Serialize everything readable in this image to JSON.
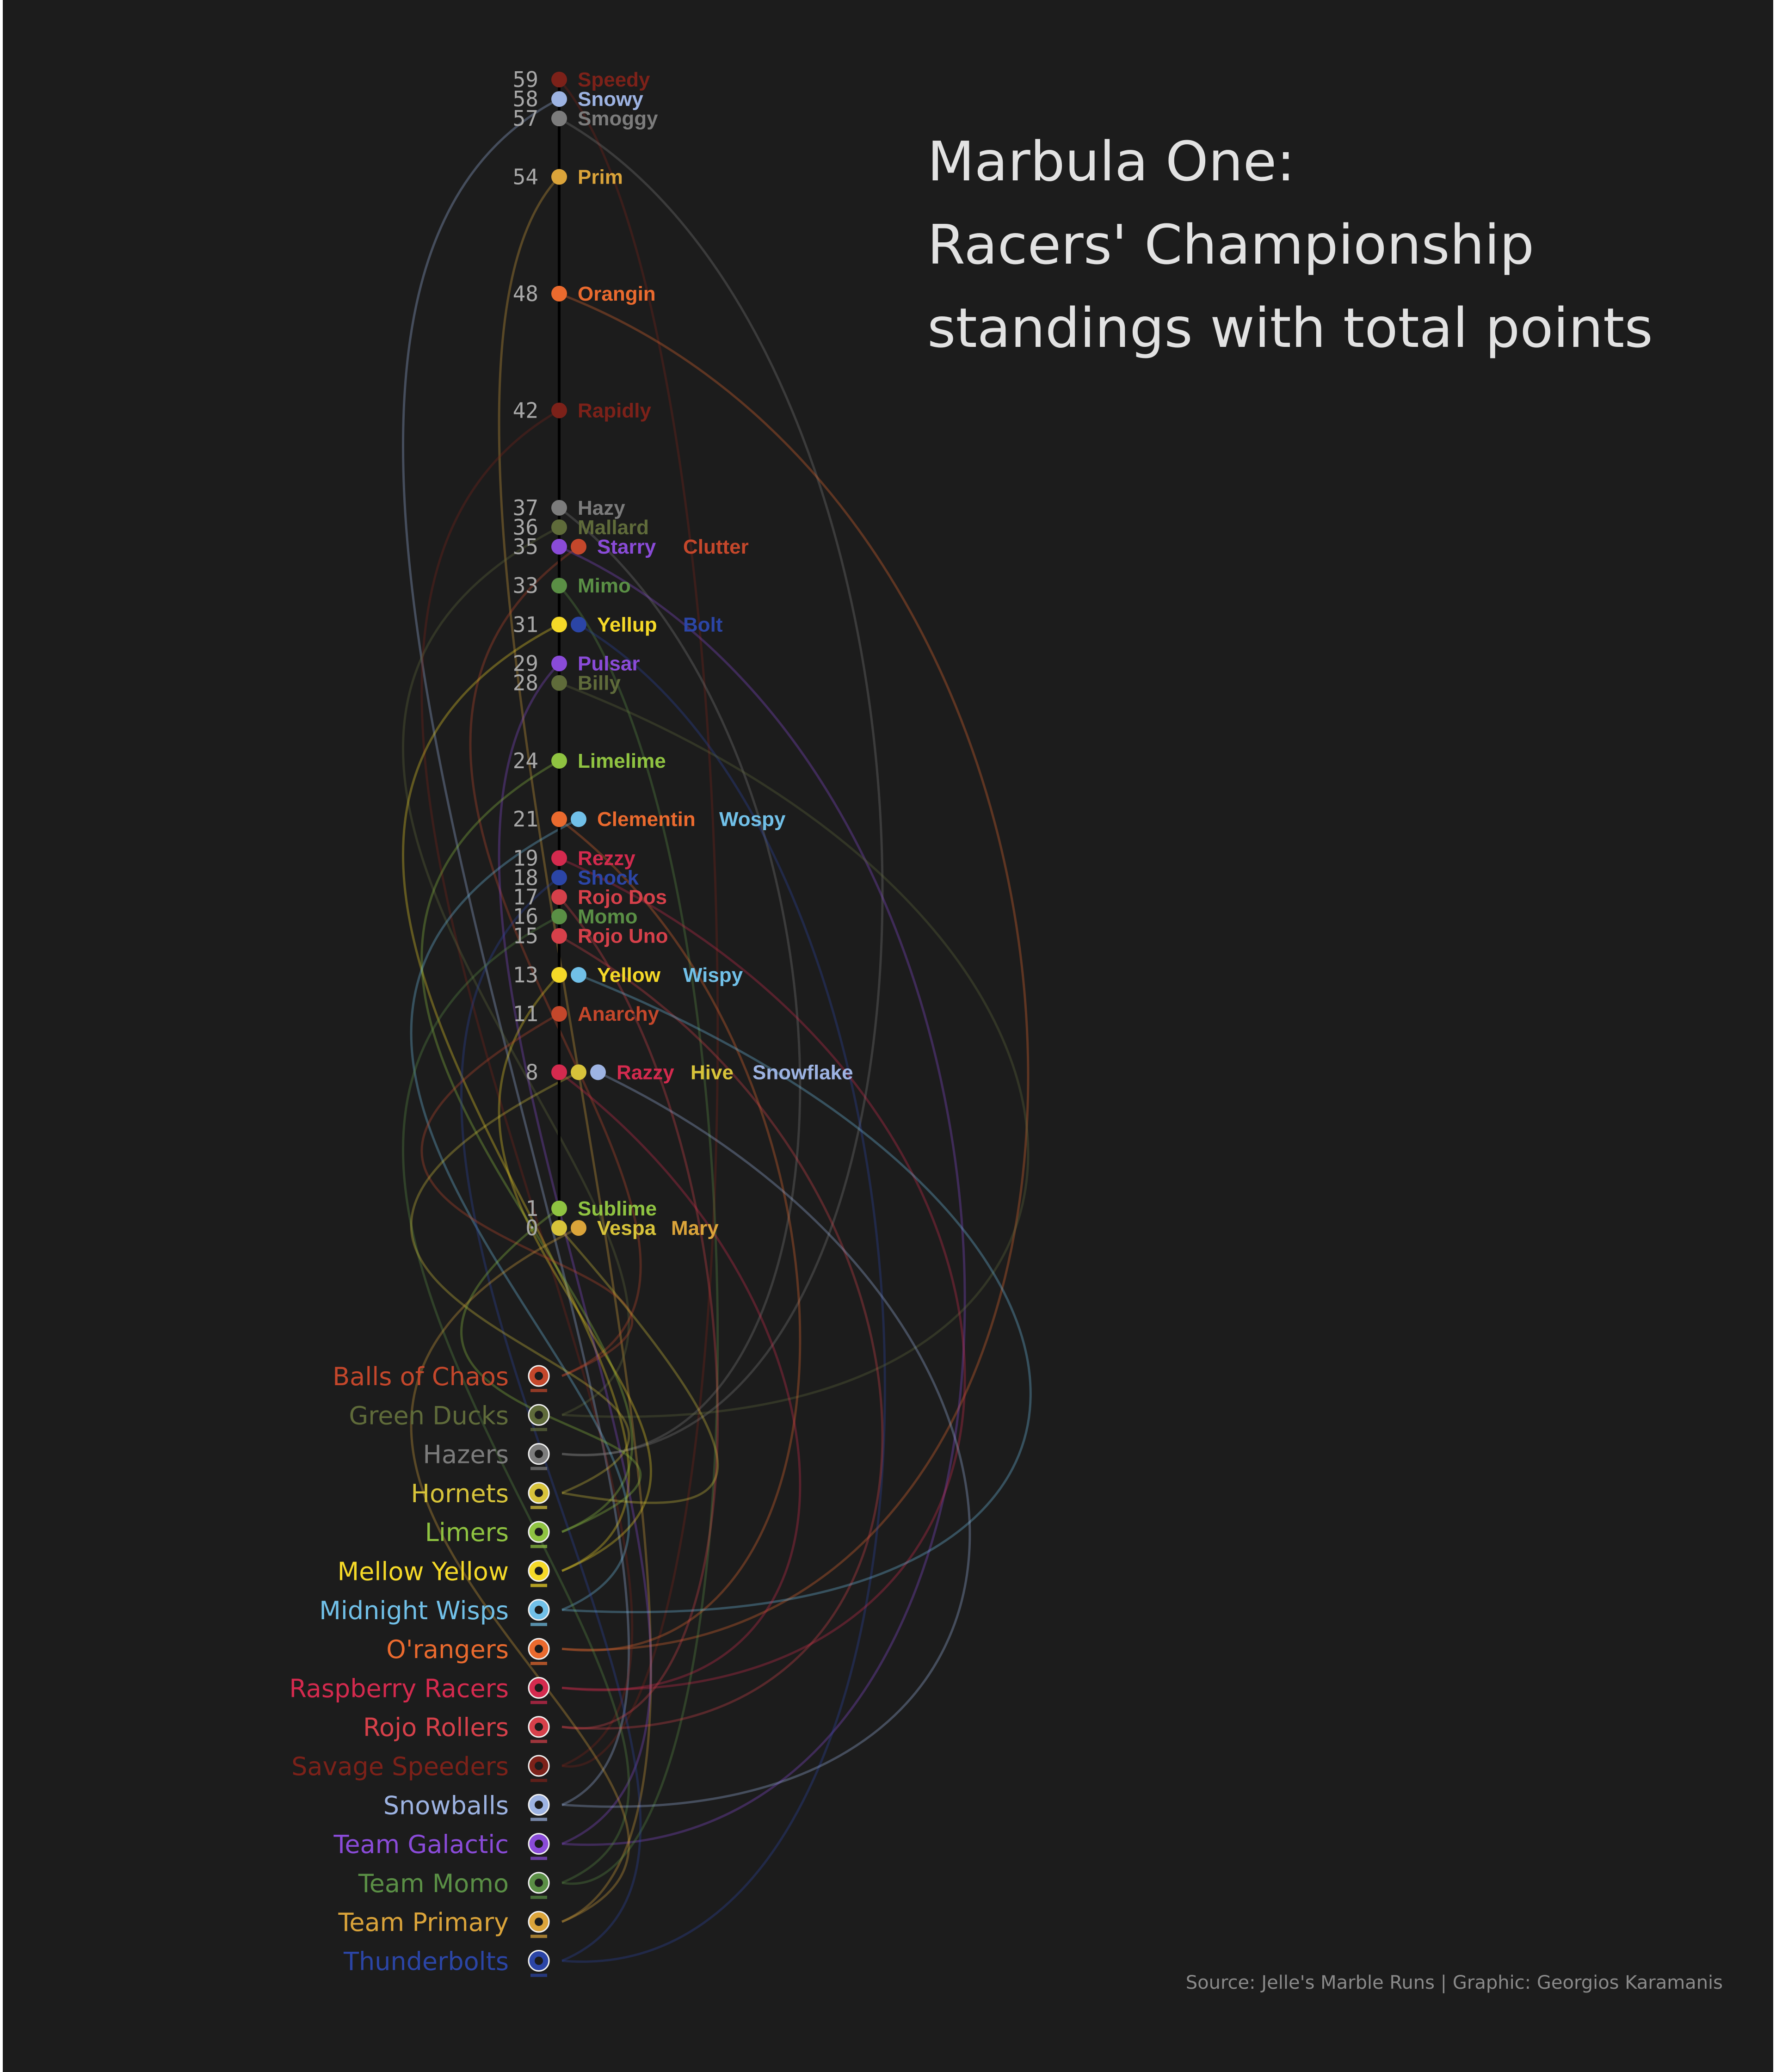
{
  "title_lines": [
    "Marbula One:",
    "Racers' Championship",
    "standings with total points"
  ],
  "caption": "Source: Jelle's Marble Runs | Graphic: Georgios Karamanis",
  "colors": {
    "background": "#1c1c1c",
    "frame": "#ffffff",
    "axis": "#000000"
  },
  "chart_data": {
    "type": "line",
    "title": "Marbula One: Racers' Championship standings with total points",
    "ylabel": "",
    "teams": [
      {
        "name": "Balls of Chaos",
        "color": "#c4472b",
        "icon": "chaos-logo-icon"
      },
      {
        "name": "Green Ducks",
        "color": "#5f6b3a",
        "icon": "duck-logo-icon"
      },
      {
        "name": "Hazers",
        "color": "#7c7c7c",
        "icon": "hazers-logo-icon"
      },
      {
        "name": "Hornets",
        "color": "#d7c33a",
        "icon": "hornet-logo-icon"
      },
      {
        "name": "Limers",
        "color": "#8fc341",
        "icon": "lime-logo-icon"
      },
      {
        "name": "Mellow Yellow",
        "color": "#f5d928",
        "icon": "yellow-logo-icon"
      },
      {
        "name": "Midnight Wisps",
        "color": "#71c0e8",
        "icon": "wisp-logo-icon"
      },
      {
        "name": "O'rangers",
        "color": "#ea6a2e",
        "icon": "orange-logo-icon"
      },
      {
        "name": "Raspberry Racers",
        "color": "#d42a4e",
        "icon": "raspberry-logo-icon"
      },
      {
        "name": "Rojo Rollers",
        "color": "#d6404a",
        "icon": "rojo-logo-icon"
      },
      {
        "name": "Savage Speeders",
        "color": "#7c2119",
        "icon": "speeder-logo-icon"
      },
      {
        "name": "Snowballs",
        "color": "#9db3e2",
        "icon": "snowflake-logo-icon"
      },
      {
        "name": "Team Galactic",
        "color": "#8a4bd8",
        "icon": "galactic-logo-icon"
      },
      {
        "name": "Team Momo",
        "color": "#5a8f45",
        "icon": "momo-logo-icon"
      },
      {
        "name": "Team Primary",
        "color": "#dba43a",
        "icon": "primary-logo-icon"
      },
      {
        "name": "Thunderbolts",
        "color": "#2b45a6",
        "icon": "bolt-logo-icon"
      }
    ],
    "racers": [
      {
        "name": "Speedy",
        "team": "Savage Speeders",
        "points": 59
      },
      {
        "name": "Snowy",
        "team": "Snowballs",
        "points": 58
      },
      {
        "name": "Smoggy",
        "team": "Hazers",
        "points": 57
      },
      {
        "name": "Prim",
        "team": "Team Primary",
        "points": 54
      },
      {
        "name": "Orangin",
        "team": "O'rangers",
        "points": 48
      },
      {
        "name": "Rapidly",
        "team": "Savage Speeders",
        "points": 42
      },
      {
        "name": "Hazy",
        "team": "Hazers",
        "points": 37
      },
      {
        "name": "Mallard",
        "team": "Green Ducks",
        "points": 36
      },
      {
        "name": "Starry",
        "team": "Team Galactic",
        "points": 35
      },
      {
        "name": "Clutter",
        "team": "Balls of Chaos",
        "points": 35
      },
      {
        "name": "Mimo",
        "team": "Team Momo",
        "points": 33
      },
      {
        "name": "Yellup",
        "team": "Mellow Yellow",
        "points": 31
      },
      {
        "name": "Bolt",
        "team": "Thunderbolts",
        "points": 31
      },
      {
        "name": "Pulsar",
        "team": "Team Galactic",
        "points": 29
      },
      {
        "name": "Billy",
        "team": "Green Ducks",
        "points": 28
      },
      {
        "name": "Limelime",
        "team": "Limers",
        "points": 24
      },
      {
        "name": "Clementin",
        "team": "O'rangers",
        "points": 21
      },
      {
        "name": "Wospy",
        "team": "Midnight Wisps",
        "points": 21
      },
      {
        "name": "Rezzy",
        "team": "Raspberry Racers",
        "points": 19
      },
      {
        "name": "Shock",
        "team": "Thunderbolts",
        "points": 18
      },
      {
        "name": "Rojo Dos",
        "team": "Rojo Rollers",
        "points": 17
      },
      {
        "name": "Momo",
        "team": "Team Momo",
        "points": 16
      },
      {
        "name": "Rojo Uno",
        "team": "Rojo Rollers",
        "points": 15
      },
      {
        "name": "Yellow",
        "team": "Mellow Yellow",
        "points": 13
      },
      {
        "name": "Wispy",
        "team": "Midnight Wisps",
        "points": 13
      },
      {
        "name": "Anarchy",
        "team": "Balls of Chaos",
        "points": 11
      },
      {
        "name": "Razzy",
        "team": "Raspberry Racers",
        "points": 8
      },
      {
        "name": "Hive",
        "team": "Hornets",
        "points": 8
      },
      {
        "name": "Snowflake",
        "team": "Snowballs",
        "points": 8
      },
      {
        "name": "Sublime",
        "team": "Limers",
        "points": 1
      },
      {
        "name": "Vespa",
        "team": "Hornets",
        "points": 0
      },
      {
        "name": "Mary",
        "team": "Team Primary",
        "points": 0
      }
    ],
    "ylim": [
      0,
      59
    ],
    "grid": false
  }
}
